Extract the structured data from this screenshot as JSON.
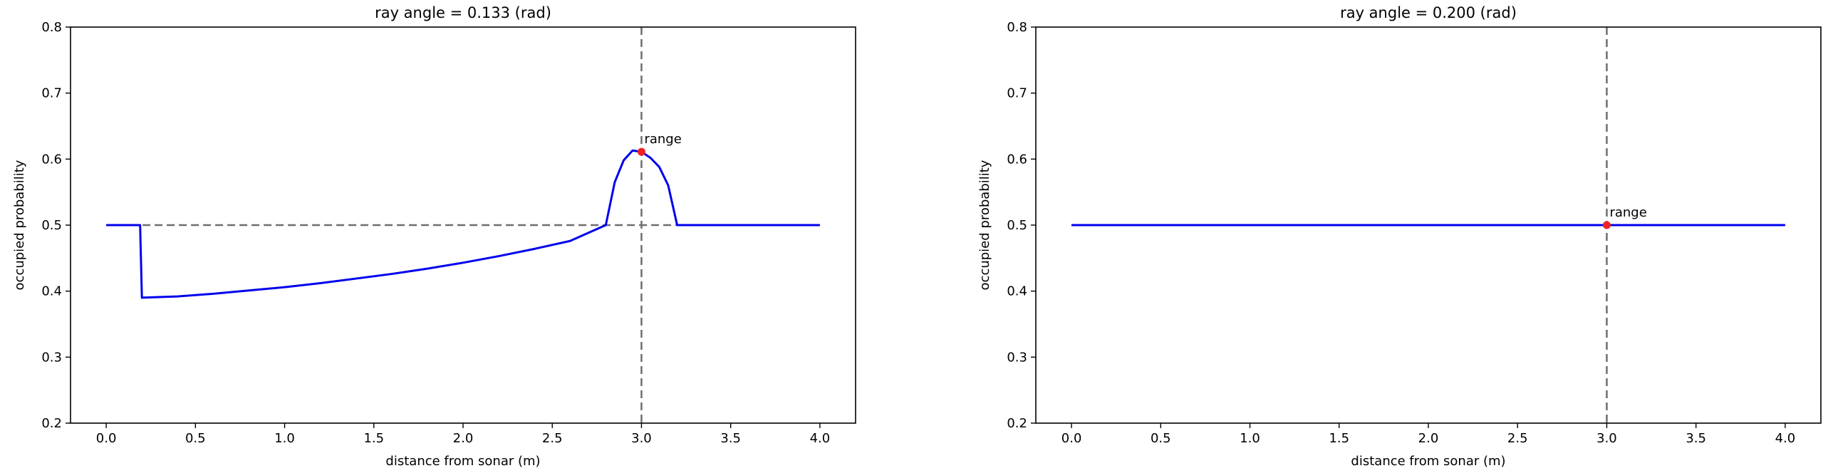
{
  "chart_data": [
    {
      "type": "line",
      "title": "ray angle = 0.133 (rad)",
      "xlabel": "distance from sonar (m)",
      "ylabel": "occupied probability",
      "xlim": [
        -0.2,
        4.2
      ],
      "ylim": [
        0.2,
        0.8
      ],
      "xticks": [
        "0.0",
        "0.5",
        "1.0",
        "1.5",
        "2.0",
        "2.5",
        "3.0",
        "3.5",
        "4.0"
      ],
      "yticks": [
        "0.2",
        "0.3",
        "0.4",
        "0.5",
        "0.6",
        "0.7",
        "0.8"
      ],
      "grid": false,
      "reference_line_y": 0.5,
      "reference_line_x": 3.0,
      "series": [
        {
          "color": "#0000ee",
          "x": [
            0.0,
            0.19,
            0.2,
            0.4,
            0.6,
            0.8,
            1.0,
            1.2,
            1.4,
            1.6,
            1.8,
            2.0,
            2.2,
            2.4,
            2.6,
            2.8,
            2.85,
            2.9,
            2.95,
            3.0,
            3.05,
            3.1,
            3.15,
            3.2,
            3.4,
            3.6,
            3.8,
            4.0
          ],
          "y": [
            0.5,
            0.5,
            0.39,
            0.392,
            0.396,
            0.401,
            0.406,
            0.412,
            0.419,
            0.426,
            0.434,
            0.443,
            0.453,
            0.464,
            0.476,
            0.5,
            0.565,
            0.598,
            0.613,
            0.611,
            0.602,
            0.588,
            0.56,
            0.5,
            0.5,
            0.5,
            0.5,
            0.5
          ]
        }
      ],
      "marker": {
        "x": 3.0,
        "y": 0.611,
        "label": "range",
        "color": "#ee2222"
      }
    },
    {
      "type": "line",
      "title": "ray angle = 0.200 (rad)",
      "xlabel": "distance from sonar (m)",
      "ylabel": "occupied probability",
      "xlim": [
        -0.2,
        4.2
      ],
      "ylim": [
        0.2,
        0.8
      ],
      "xticks": [
        "0.0",
        "0.5",
        "1.0",
        "1.5",
        "2.0",
        "2.5",
        "3.0",
        "3.5",
        "4.0"
      ],
      "yticks": [
        "0.2",
        "0.3",
        "0.4",
        "0.5",
        "0.6",
        "0.7",
        "0.8"
      ],
      "grid": false,
      "reference_line_y": 0.5,
      "reference_line_x": 3.0,
      "series": [
        {
          "color": "#0000ee",
          "x": [
            0.0,
            4.0
          ],
          "y": [
            0.5,
            0.5
          ]
        }
      ],
      "marker": {
        "x": 3.0,
        "y": 0.5,
        "label": "range",
        "color": "#ee2222"
      }
    }
  ]
}
